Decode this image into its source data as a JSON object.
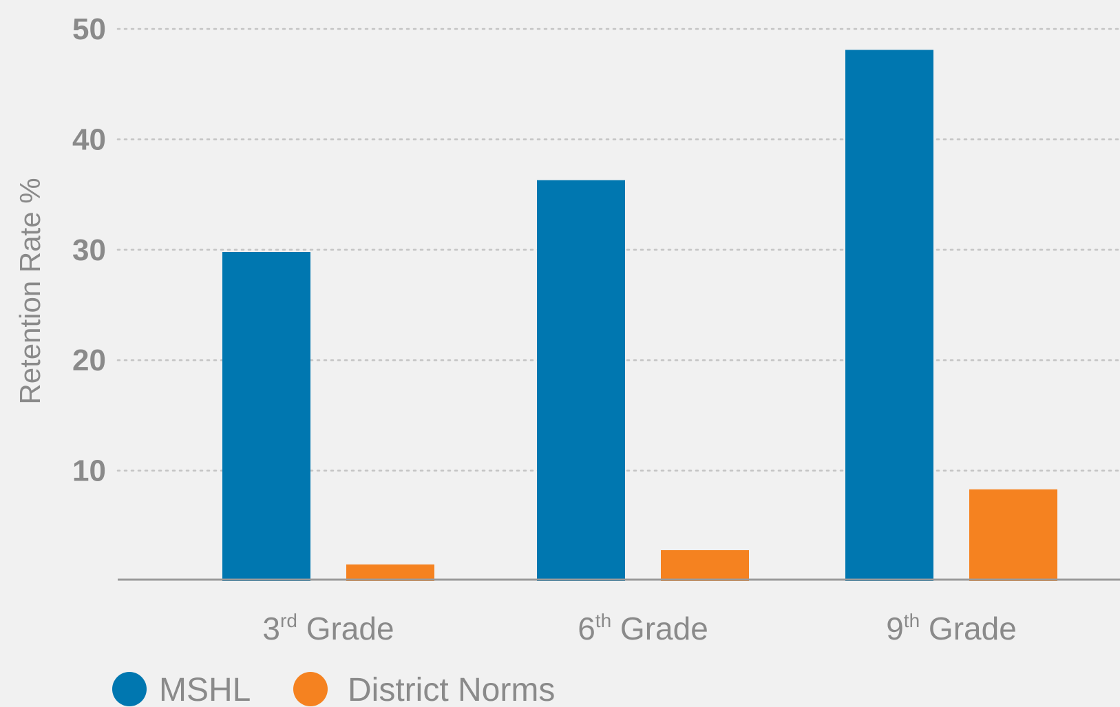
{
  "chart_data": {
    "type": "bar",
    "categories": [
      {
        "base": "3",
        "sup": "rd",
        "rest": " Grade"
      },
      {
        "base": "6",
        "sup": "th",
        "rest": " Grade"
      },
      {
        "base": "9",
        "sup": "th",
        "rest": " Grade"
      }
    ],
    "series": [
      {
        "name": "MSHL",
        "color": "#0077b0",
        "values": [
          29.8,
          36.3,
          48.1
        ]
      },
      {
        "name": "District Norms",
        "color": "#f58220",
        "values": [
          1.5,
          2.8,
          8.3
        ]
      }
    ],
    "ylabel": "Retention Rate %",
    "xlabel": "",
    "ylim": [
      0,
      50
    ],
    "yticks": [
      "10",
      "20",
      "30",
      "40",
      "50"
    ],
    "grid": true,
    "legend": "bottom-left"
  }
}
